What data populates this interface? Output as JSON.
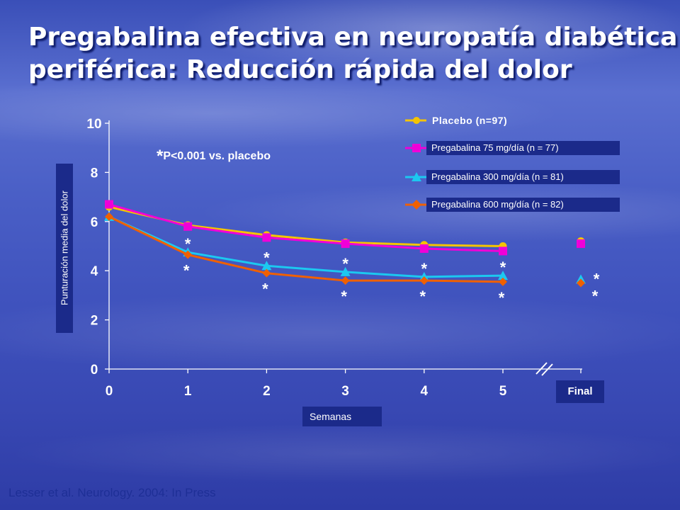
{
  "slide": {
    "title_line1": "Pregabalina efectiva en neuropatía diabética",
    "title_line2": "periférica: Reducción rápida del dolor",
    "citation": "Lesser et al. Neurology. 2004: In Press"
  },
  "chart_data": {
    "type": "line",
    "xlabel": "Semanas",
    "ylabel": "Punturación media del dolor",
    "ylim": [
      0,
      10
    ],
    "yticks": [
      "0",
      "2",
      "4",
      "6",
      "8",
      "10"
    ],
    "x": [
      "0",
      "1",
      "2",
      "3",
      "4",
      "5"
    ],
    "final_label": "Final",
    "annotation": "P<0.001 vs. placebo",
    "annotation_marker": "*",
    "significance_marker": "*",
    "grid": false,
    "legend_position": "top-right",
    "series": [
      {
        "name": "Placebo (n=97)",
        "color": "#f5c400",
        "marker": "circle",
        "values": [
          6.6,
          5.85,
          5.45,
          5.15,
          5.05,
          5.0
        ],
        "final": 5.2
      },
      {
        "name": "Pregabalina 75 mg/día (n = 77)",
        "color": "#f000d8",
        "marker": "square",
        "values": [
          6.7,
          5.8,
          5.35,
          5.1,
          4.9,
          4.8
        ],
        "final": 5.1
      },
      {
        "name": "Pregabalina 300 mg/día (n = 81)",
        "color": "#1cc8f0",
        "marker": "triangle",
        "values": [
          6.2,
          4.75,
          4.2,
          3.95,
          3.75,
          3.8
        ],
        "final": 3.65
      },
      {
        "name": "Pregabalina 600 mg/día (n = 82)",
        "color": "#f06000",
        "marker": "diamond",
        "values": [
          6.2,
          4.65,
          3.9,
          3.6,
          3.6,
          3.55
        ],
        "final": 3.5
      }
    ]
  }
}
